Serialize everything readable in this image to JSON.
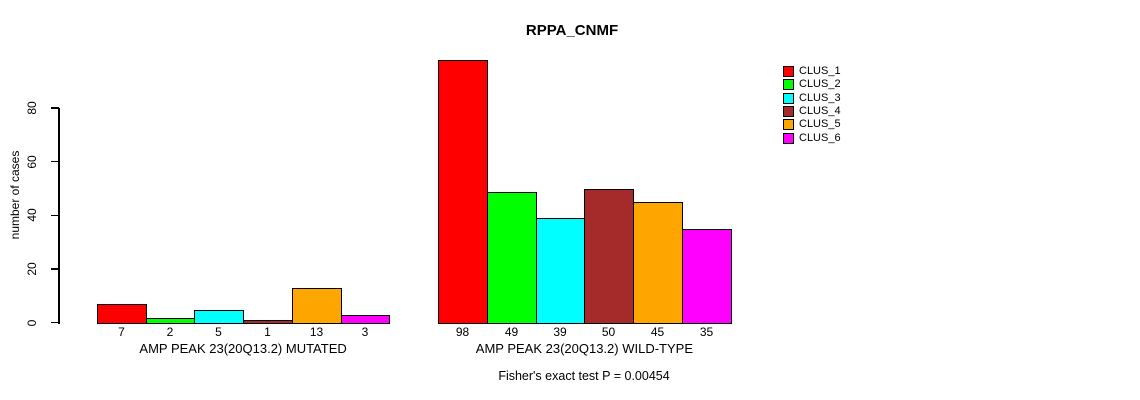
{
  "title": "RPPA_CNMF",
  "y_axis": {
    "label": "number of cases",
    "ticks": [
      0,
      20,
      40,
      60,
      80
    ]
  },
  "annotation": "Fisher's exact test P = 0.00454",
  "legend": {
    "items": [
      {
        "label": "CLUS_1",
        "color": "#FF0000"
      },
      {
        "label": "CLUS_2",
        "color": "#00FF00"
      },
      {
        "label": "CLUS_3",
        "color": "#00FFFF"
      },
      {
        "label": "CLUS_4",
        "color": "#A52A2A"
      },
      {
        "label": "CLUS_5",
        "color": "#FFA500"
      },
      {
        "label": "CLUS_6",
        "color": "#FF00FF"
      }
    ]
  },
  "chart_data": {
    "type": "bar",
    "title": "RPPA_CNMF",
    "xlabel": "",
    "ylabel": "number of cases",
    "ylim": [
      0,
      100
    ],
    "yticks": [
      0,
      20,
      40,
      60,
      80
    ],
    "grid": false,
    "legend_position": "right",
    "legend": [
      "CLUS_1",
      "CLUS_2",
      "CLUS_3",
      "CLUS_4",
      "CLUS_5",
      "CLUS_6"
    ],
    "series_colors": [
      "#FF0000",
      "#00FF00",
      "#00FFFF",
      "#A52A2A",
      "#FFA500",
      "#FF00FF"
    ],
    "groups": [
      {
        "label": "AMP PEAK 23(20Q13.2) MUTATED",
        "values": [
          7,
          2,
          5,
          1,
          13,
          3
        ]
      },
      {
        "label": "AMP PEAK 23(20Q13.2) WILD-TYPE",
        "values": [
          98,
          49,
          39,
          50,
          45,
          35
        ]
      }
    ],
    "annotation": "Fisher's exact test P = 0.00454"
  }
}
